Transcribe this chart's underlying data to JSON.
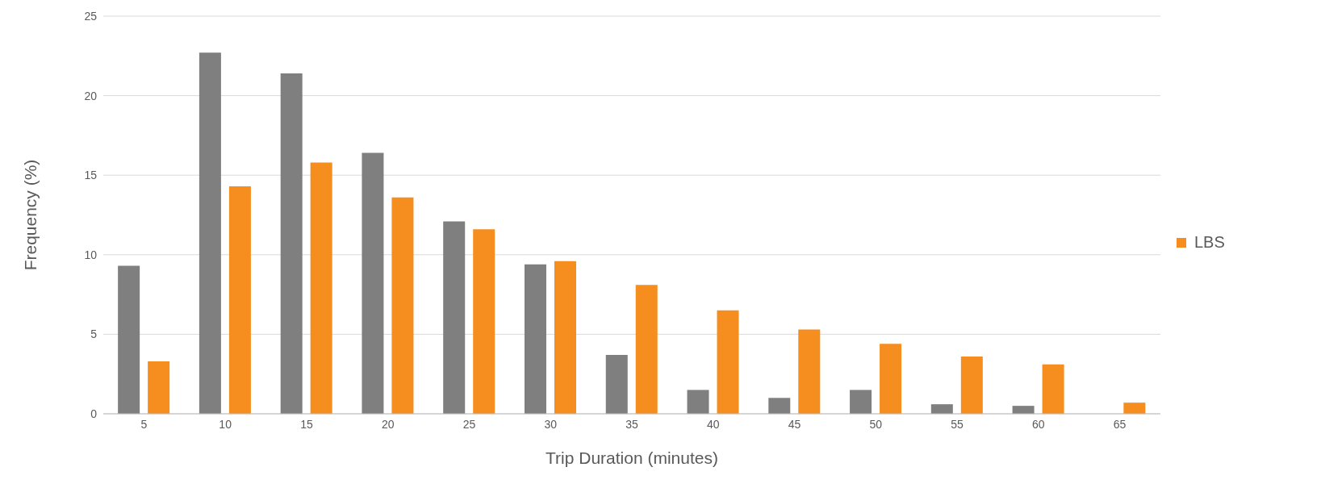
{
  "chart_data": {
    "type": "bar",
    "xlabel": "Trip Duration (minutes)",
    "ylabel": "Frequency (%)",
    "categories": [
      "5",
      "10",
      "15",
      "20",
      "25",
      "30",
      "35",
      "40",
      "45",
      "50",
      "55",
      "60",
      "65"
    ],
    "series": [
      {
        "color": "#7f7f7f",
        "values": [
          9.3,
          22.7,
          21.4,
          16.4,
          12.1,
          9.4,
          3.7,
          1.5,
          1.0,
          1.5,
          0.6,
          0.5,
          0
        ]
      },
      {
        "name": "LBS",
        "color": "#f58d1f",
        "values": [
          3.3,
          14.3,
          15.8,
          13.6,
          11.6,
          9.6,
          8.1,
          6.5,
          5.3,
          4.4,
          3.6,
          3.1,
          0.7
        ]
      }
    ],
    "ylim": [
      0,
      25
    ],
    "yticks": [
      0,
      5,
      10,
      15,
      20,
      25
    ],
    "grid": "y",
    "legend": "right"
  }
}
